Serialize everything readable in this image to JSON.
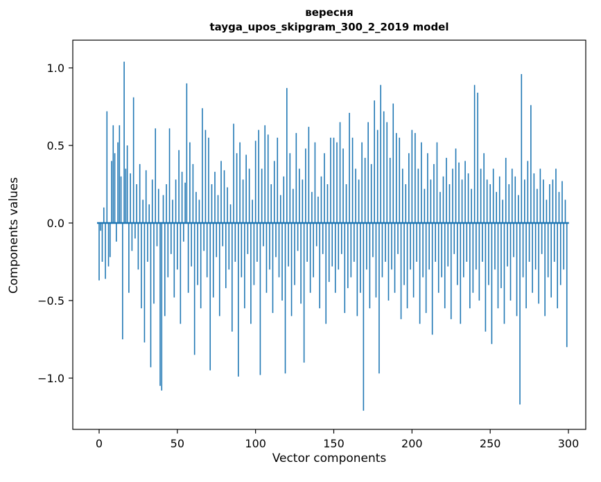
{
  "figure": {
    "title_line1": "вересня",
    "title_line2": "tayga_upos_skipgram_300_2_2019 model",
    "xlabel": "Vector components",
    "ylabel": "Components values"
  },
  "chart_data": {
    "type": "bar",
    "title": "вересня — tayga_upos_skipgram_300_2_2019 model",
    "xlabel": "Vector components",
    "ylabel": "Components values",
    "bar_color": "#1f77b4",
    "axis_color": "#000000",
    "grid": false,
    "legend": false,
    "n_components": 300,
    "x_ticks": [
      0,
      50,
      100,
      150,
      200,
      250,
      300
    ],
    "y_ticks": [
      1.0,
      0.5,
      0.0,
      -0.5,
      -1.0
    ],
    "y_tick_labels": [
      "1.0",
      "0.5",
      "0.0",
      "−0.5",
      "−1.0"
    ],
    "xlim": [
      -15,
      315
    ],
    "ylim": [
      -1.33,
      1.18
    ],
    "values": [
      -0.37,
      -0.05,
      -0.25,
      0.1,
      -0.36,
      0.72,
      -0.28,
      -0.22,
      0.4,
      0.63,
      0.45,
      -0.12,
      0.52,
      0.63,
      0.3,
      -0.75,
      1.04,
      0.35,
      0.5,
      -0.45,
      0.32,
      -0.18,
      0.81,
      -0.1,
      0.25,
      -0.3,
      0.38,
      -0.55,
      0.15,
      -0.77,
      0.34,
      -0.25,
      0.12,
      -0.93,
      0.28,
      -0.52,
      0.61,
      -0.15,
      0.22,
      -1.05,
      -1.08,
      0.18,
      -0.6,
      0.25,
      -0.35,
      0.61,
      -0.2,
      0.15,
      -0.48,
      0.28,
      -0.3,
      0.47,
      -0.65,
      0.33,
      -0.12,
      0.26,
      0.9,
      -0.45,
      0.52,
      -0.28,
      0.38,
      -0.85,
      0.2,
      -0.4,
      0.15,
      -0.55,
      0.74,
      -0.18,
      0.6,
      -0.35,
      0.55,
      -0.95,
      0.25,
      -0.48,
      0.33,
      -0.22,
      0.18,
      -0.6,
      0.4,
      -0.15,
      0.34,
      -0.42,
      0.23,
      -0.3,
      0.12,
      -0.7,
      0.64,
      -0.25,
      0.45,
      -0.99,
      0.52,
      -0.35,
      0.28,
      -0.55,
      0.44,
      -0.2,
      0.35,
      -0.65,
      0.15,
      -0.4,
      0.53,
      -0.25,
      0.6,
      -0.98,
      0.35,
      -0.15,
      0.63,
      -0.45,
      0.57,
      -0.3,
      0.25,
      -0.58,
      0.4,
      -0.22,
      0.55,
      -0.35,
      0.18,
      -0.5,
      0.3,
      -0.97,
      0.87,
      -0.28,
      0.45,
      -0.6,
      0.22,
      -0.4,
      0.58,
      -0.18,
      0.35,
      -0.52,
      0.28,
      -0.9,
      0.48,
      -0.25,
      0.62,
      -0.45,
      0.2,
      -0.35,
      0.52,
      -0.15,
      0.17,
      -0.55,
      0.3,
      -0.2,
      0.45,
      -0.65,
      0.25,
      -0.38,
      0.55,
      -0.28,
      0.55,
      -0.45,
      0.52,
      -0.3,
      0.65,
      -0.2,
      0.48,
      -0.58,
      0.25,
      -0.42,
      0.71,
      -0.35,
      0.55,
      -0.25,
      0.35,
      -0.6,
      0.28,
      -0.45,
      0.52,
      -1.21,
      0.42,
      -0.3,
      0.65,
      -0.55,
      0.38,
      -0.22,
      0.79,
      -0.48,
      0.6,
      -0.97,
      0.89,
      -0.35,
      0.72,
      -0.25,
      0.65,
      -0.5,
      0.42,
      -0.3,
      0.77,
      -0.45,
      0.58,
      -0.2,
      0.55,
      -0.62,
      0.35,
      -0.4,
      0.25,
      -0.55,
      0.45,
      -0.3,
      0.6,
      -0.48,
      0.58,
      -0.25,
      0.35,
      -0.65,
      0.52,
      -0.35,
      0.22,
      -0.58,
      0.45,
      -0.3,
      0.28,
      -0.72,
      0.38,
      -0.25,
      0.52,
      -0.45,
      0.2,
      -0.35,
      0.3,
      -0.55,
      0.42,
      -0.28,
      0.25,
      -0.62,
      0.35,
      -0.2,
      0.48,
      -0.4,
      0.39,
      -0.65,
      0.28,
      -0.35,
      0.4,
      -0.25,
      0.32,
      -0.55,
      0.22,
      -0.45,
      0.89,
      -0.3,
      0.84,
      -0.5,
      0.35,
      -0.25,
      0.45,
      -0.7,
      0.28,
      -0.4,
      0.25,
      -0.78,
      0.35,
      -0.3,
      0.2,
      -0.55,
      0.3,
      -0.42,
      0.15,
      -0.65,
      0.42,
      -0.28,
      0.25,
      -0.5,
      0.35,
      -0.22,
      0.3,
      -0.6,
      0.18,
      -1.17,
      0.96,
      -0.35,
      0.28,
      -0.55,
      0.4,
      -0.25,
      0.76,
      -0.45,
      0.32,
      -0.3,
      0.22,
      -0.52,
      0.35,
      -0.2,
      0.28,
      -0.6,
      0.15,
      -0.35,
      0.25,
      -0.48,
      0.28,
      -0.25,
      0.35,
      -0.55,
      0.2,
      -0.4,
      0.27,
      -0.3,
      0.15,
      -0.8
    ]
  }
}
